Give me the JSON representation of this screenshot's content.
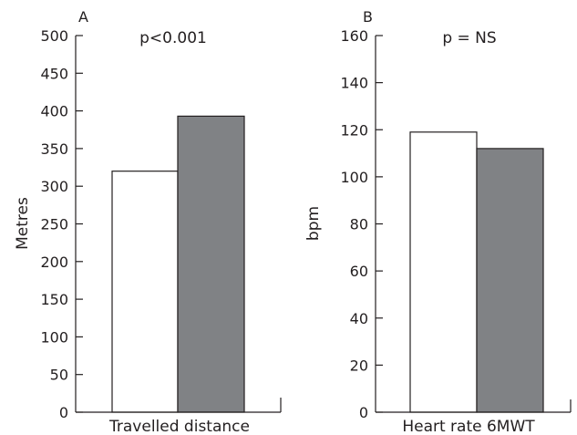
{
  "chart_data": [
    {
      "type": "bar",
      "panel_label": "A",
      "annotation": "p<0.001",
      "ylabel": "Metres",
      "xlabel": "Travelled distance",
      "ylim": [
        0,
        500
      ],
      "yticks": [
        0,
        50,
        100,
        150,
        200,
        250,
        300,
        350,
        400,
        450,
        500
      ],
      "series": [
        {
          "values": [
            320
          ],
          "color": "#ffffff"
        },
        {
          "values": [
            393
          ],
          "color": "#808285"
        }
      ]
    },
    {
      "type": "bar",
      "panel_label": "B",
      "annotation": "p = NS",
      "ylabel": "bpm",
      "xlabel": "Heart rate 6MWT",
      "ylim": [
        0,
        160
      ],
      "yticks": [
        0,
        20,
        40,
        60,
        80,
        100,
        120,
        140,
        160
      ],
      "series": [
        {
          "values": [
            119
          ],
          "color": "#ffffff"
        },
        {
          "values": [
            112
          ],
          "color": "#808285"
        }
      ]
    }
  ]
}
